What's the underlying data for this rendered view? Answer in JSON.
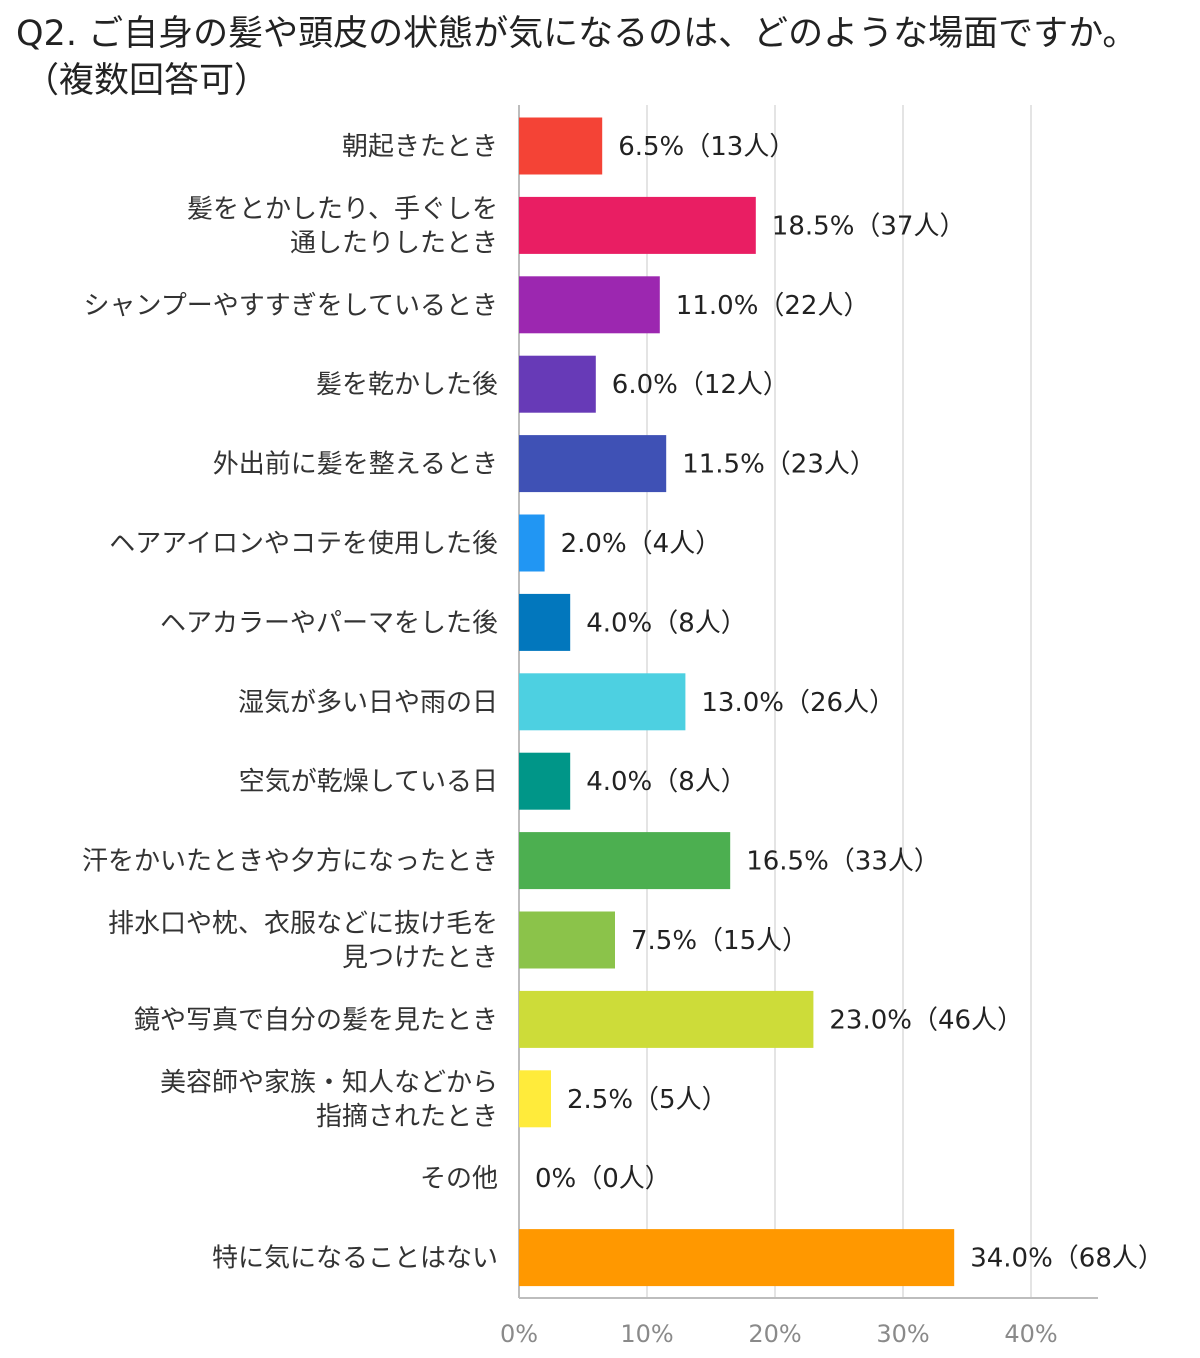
{
  "title_line1": "Q2. ご自身の髪や頭皮の状態が気になるのは、どのような場面ですか。",
  "title_line2": "（複数回答可）",
  "chart_data": {
    "type": "bar",
    "orientation": "horizontal",
    "xlim": [
      0,
      40
    ],
    "x_ticks": [
      "0%",
      "10%",
      "20%",
      "30%",
      "40%"
    ],
    "grid": true,
    "categories": [
      [
        "朝起きたとき"
      ],
      [
        "髪をとかしたり、手ぐしを",
        "通したりしたとき"
      ],
      [
        "シャンプーやすすぎをしているとき"
      ],
      [
        "髪を乾かした後"
      ],
      [
        "外出前に髪を整えるとき"
      ],
      [
        "ヘアアイロンやコテを使用した後"
      ],
      [
        "ヘアカラーやパーマをした後"
      ],
      [
        "湿気が多い日や雨の日"
      ],
      [
        "空気が乾燥している日"
      ],
      [
        "汗をかいたときや夕方になったとき"
      ],
      [
        "排水口や枕、衣服などに抜け毛を",
        "見つけたとき"
      ],
      [
        "鏡や写真で自分の髪を見たとき"
      ],
      [
        "美容師や家族・知人などから",
        "指摘されたとき"
      ],
      [
        "その他"
      ],
      [
        "特に気になることはない"
      ]
    ],
    "values": [
      6.5,
      18.5,
      11.0,
      6.0,
      11.5,
      2.0,
      4.0,
      13.0,
      4.0,
      16.5,
      7.5,
      23.0,
      2.5,
      0,
      34.0
    ],
    "data_labels": [
      "6.5%（13人）",
      "18.5%（37人）",
      "11.0%（22人）",
      "6.0%（12人）",
      "11.5%（23人）",
      "2.0%（4人）",
      "4.0%（8人）",
      "13.0%（26人）",
      "4.0%（8人）",
      "16.5%（33人）",
      "7.5%（15人）",
      "23.0%（46人）",
      "2.5%（5人）",
      "0%（0人）",
      "34.0%（68人）"
    ],
    "colors": [
      "#f44336",
      "#e91e63",
      "#9c27b0",
      "#673ab7",
      "#3f51b5",
      "#2196f3",
      "#0277bd",
      "#4dd0e1",
      "#009688",
      "#4caf50",
      "#8bc34a",
      "#cddc39",
      "#ffeb3b",
      "#ff5722",
      "#ff9800"
    ]
  }
}
